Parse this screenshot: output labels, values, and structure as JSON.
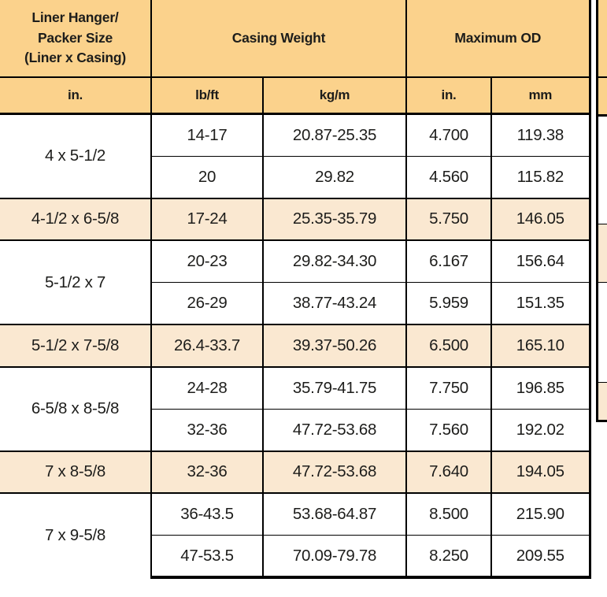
{
  "colors": {
    "header_bg": "#FBD28C",
    "highlight_bg": "#FAE8D1",
    "row_bg": "#FFFFFF",
    "border": "#000000",
    "text": "#1D1D1B"
  },
  "table": {
    "header": {
      "size_label": "Liner Hanger/\nPacker Size\n(Liner x Casing)",
      "casing_weight_label": "Casing Weight",
      "max_od_label": "Maximum OD",
      "sub": [
        "in.",
        "lb/ft",
        "kg/m",
        "in.",
        "mm"
      ]
    },
    "groups": [
      {
        "size": "4 x 5-1/2",
        "highlight": false,
        "rows": [
          [
            "14-17",
            "20.87-25.35",
            "4.700",
            "119.38"
          ],
          [
            "20",
            "29.82",
            "4.560",
            "115.82"
          ]
        ]
      },
      {
        "size": "4-1/2 x 6-5/8",
        "highlight": true,
        "rows": [
          [
            "17-24",
            "25.35-35.79",
            "5.750",
            "146.05"
          ]
        ]
      },
      {
        "size": "5-1/2 x 7",
        "highlight": false,
        "rows": [
          [
            "20-23",
            "29.82-34.30",
            "6.167",
            "156.64"
          ],
          [
            "26-29",
            "38.77-43.24",
            "5.959",
            "151.35"
          ]
        ]
      },
      {
        "size": "5-1/2 x 7-5/8",
        "highlight": true,
        "rows": [
          [
            "26.4-33.7",
            "39.37-50.26",
            "6.500",
            "165.10"
          ]
        ]
      },
      {
        "size": "6-5/8 x 8-5/8",
        "highlight": false,
        "rows": [
          [
            "24-28",
            "35.79-41.75",
            "7.750",
            "196.85"
          ],
          [
            "32-36",
            "47.72-53.68",
            "7.560",
            "192.02"
          ]
        ]
      },
      {
        "size": "7 x 8-5/8",
        "highlight": true,
        "rows": [
          [
            "32-36",
            "47.72-53.68",
            "7.640",
            "194.05"
          ]
        ]
      },
      {
        "size": "7 x 9-5/8",
        "highlight": false,
        "rows": [
          [
            "36-43.5",
            "53.68-64.87",
            "8.500",
            "215.90"
          ],
          [
            "47-53.5",
            "70.09-79.78",
            "8.250",
            "209.55"
          ]
        ]
      }
    ]
  }
}
